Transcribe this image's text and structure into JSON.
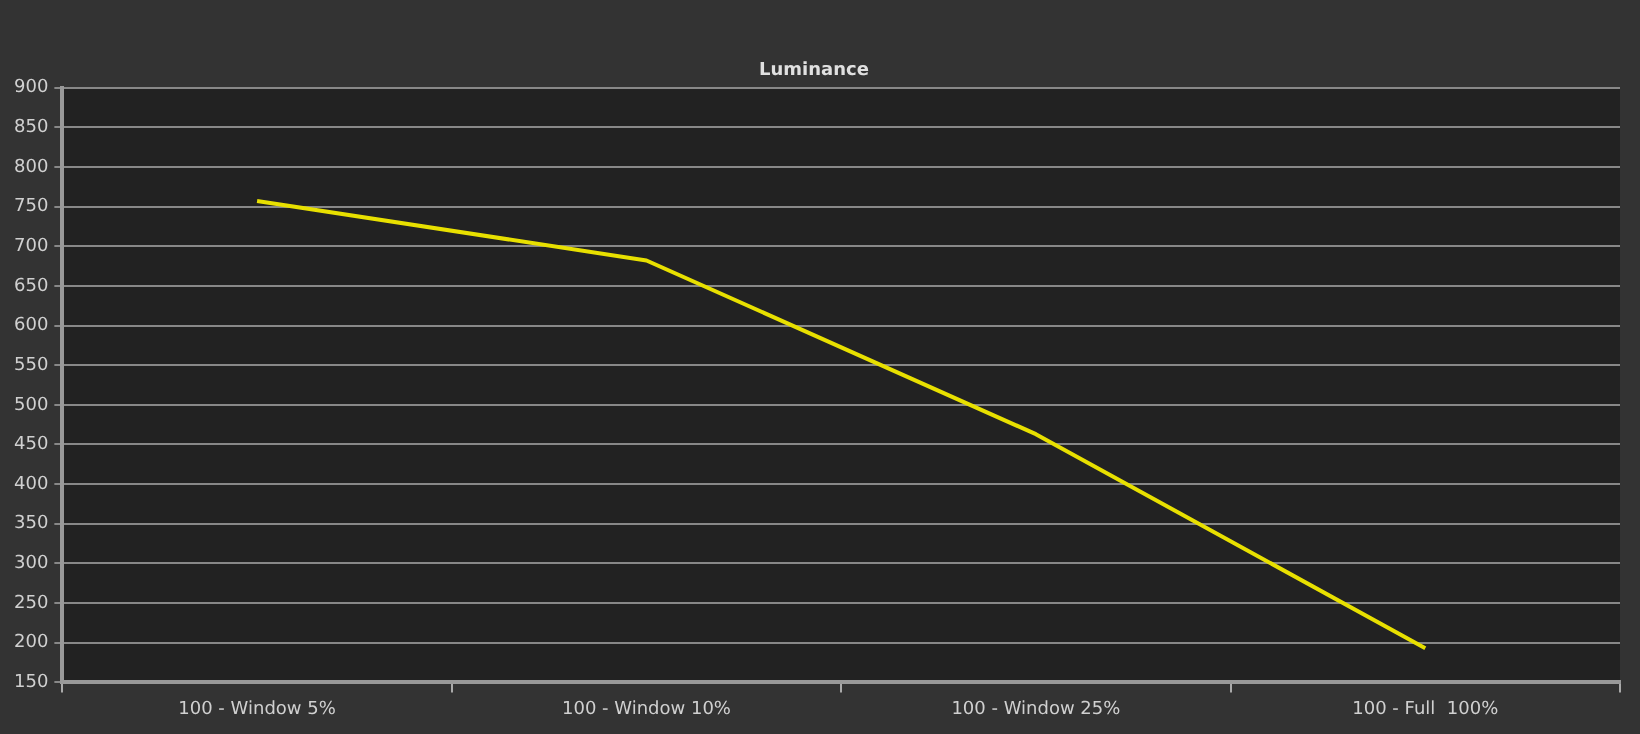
{
  "chart_data": {
    "type": "line",
    "title": "Luminance",
    "categories": [
      "100 - Window 5%",
      "100 - Window 10%",
      "100 - Window 25%",
      "100 - Full  100%"
    ],
    "series": [
      {
        "color": "#e8e000",
        "values": [
          757,
          682,
          463,
          193
        ]
      }
    ],
    "ylim": [
      150,
      900
    ],
    "yticks": [
      150,
      200,
      250,
      300,
      350,
      400,
      450,
      500,
      550,
      600,
      650,
      700,
      750,
      800,
      850,
      900
    ],
    "grid": "y",
    "legend": false,
    "marker": "none",
    "line_style": "solid"
  }
}
